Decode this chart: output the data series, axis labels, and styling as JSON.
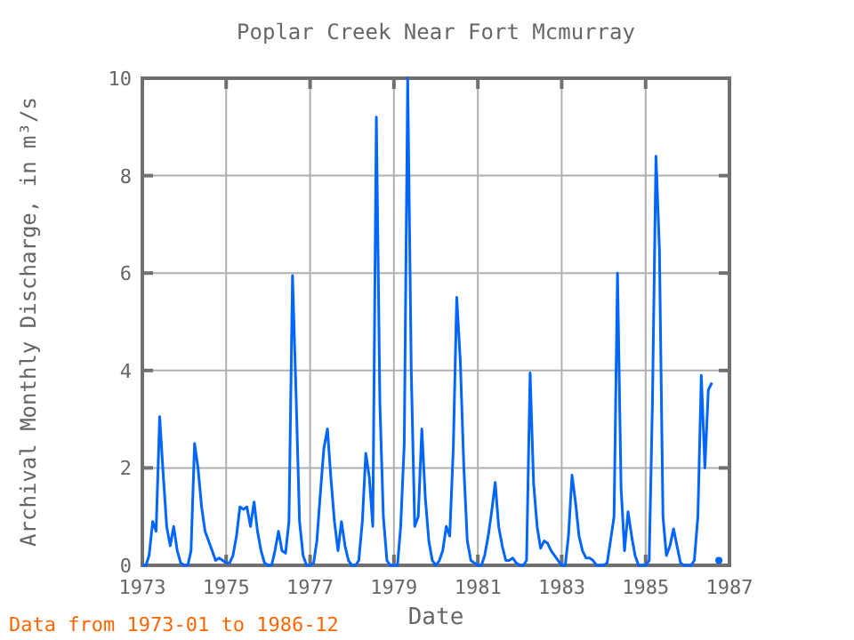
{
  "chart_data": {
    "type": "line",
    "title": "Poplar Creek Near Fort Mcmurray",
    "xlabel": "Date",
    "ylabel": "Archival Monthly Discharge, in m³/s",
    "annotations": [
      "Data from 1973-01 to 1986-12"
    ],
    "x": [
      "1973-01",
      "1973-02",
      "1973-03",
      "1973-04",
      "1973-05",
      "1973-06",
      "1973-07",
      "1973-08",
      "1973-09",
      "1973-10",
      "1973-11",
      "1973-12",
      "1974-01",
      "1974-02",
      "1974-03",
      "1974-04",
      "1974-05",
      "1974-06",
      "1974-07",
      "1974-08",
      "1974-09",
      "1974-10",
      "1974-11",
      "1974-12",
      "1975-01",
      "1975-02",
      "1975-03",
      "1975-04",
      "1975-05",
      "1975-06",
      "1975-07",
      "1975-08",
      "1975-09",
      "1975-10",
      "1975-11",
      "1975-12",
      "1976-01",
      "1976-02",
      "1976-03",
      "1976-04",
      "1976-05",
      "1976-06",
      "1976-07",
      "1976-08",
      "1976-09",
      "1976-10",
      "1976-11",
      "1976-12",
      "1977-01",
      "1977-02",
      "1977-03",
      "1977-04",
      "1977-05",
      "1977-06",
      "1977-07",
      "1977-08",
      "1977-09",
      "1977-10",
      "1977-11",
      "1977-12",
      "1978-01",
      "1978-02",
      "1978-03",
      "1978-04",
      "1978-05",
      "1978-06",
      "1978-07",
      "1978-08",
      "1978-09",
      "1978-10",
      "1978-11",
      "1978-12",
      "1979-01",
      "1979-02",
      "1979-03",
      "1979-04",
      "1979-05",
      "1979-06",
      "1979-07",
      "1979-08",
      "1979-09",
      "1979-10",
      "1979-11",
      "1979-12",
      "1980-01",
      "1980-02",
      "1980-03",
      "1980-04",
      "1980-05",
      "1980-06",
      "1980-07",
      "1980-08",
      "1980-09",
      "1980-10",
      "1980-11",
      "1980-12",
      "1981-01",
      "1981-02",
      "1981-03",
      "1981-04",
      "1981-05",
      "1981-06",
      "1981-07",
      "1981-08",
      "1981-09",
      "1981-10",
      "1981-11",
      "1981-12",
      "1982-01",
      "1982-02",
      "1982-03",
      "1982-04",
      "1982-05",
      "1982-06",
      "1982-07",
      "1982-08",
      "1982-09",
      "1982-10",
      "1982-11",
      "1982-12",
      "1983-01",
      "1983-02",
      "1983-03",
      "1983-04",
      "1983-05",
      "1983-06",
      "1983-07",
      "1983-08",
      "1983-09",
      "1983-10",
      "1983-11",
      "1983-12",
      "1984-01",
      "1984-02",
      "1984-03",
      "1984-04",
      "1984-05",
      "1984-06",
      "1984-07",
      "1984-08",
      "1984-09",
      "1984-10",
      "1984-11",
      "1984-12",
      "1985-01",
      "1985-02",
      "1985-03",
      "1985-04",
      "1985-05",
      "1985-06",
      "1985-07",
      "1985-08",
      "1985-09",
      "1985-10",
      "1985-11",
      "1985-12",
      "1986-01",
      "1986-02",
      "1986-03",
      "1986-04",
      "1986-05",
      "1986-06",
      "1986-07",
      "1986-08",
      "1986-09",
      "1986-10"
    ],
    "series": [
      {
        "color": "#0066ff",
        "values": [
          0,
          0,
          0.2,
          0.9,
          0.7,
          3.05,
          1.9,
          0.8,
          0.4,
          0.8,
          0.3,
          0.05,
          0,
          0,
          0.3,
          2.5,
          2.0,
          1.2,
          0.7,
          0.5,
          0.3,
          0.1,
          0.15,
          0.1,
          0.05,
          0.05,
          0.2,
          0.6,
          1.2,
          1.15,
          1.2,
          0.8,
          1.3,
          0.7,
          0.3,
          0.05,
          0,
          0,
          0.3,
          0.7,
          0.3,
          0.25,
          0.9,
          5.95,
          3.5,
          0.9,
          0.2,
          0,
          0,
          0.05,
          0.5,
          1.5,
          2.4,
          2.8,
          1.8,
          0.9,
          0.3,
          0.9,
          0.4,
          0.1,
          0,
          0,
          0.1,
          0.9,
          2.3,
          1.8,
          0.8,
          9.2,
          3.3,
          1.0,
          0.1,
          0,
          0,
          0,
          0.8,
          2.5,
          10,
          4.0,
          0.8,
          1.0,
          2.8,
          1.4,
          0.5,
          0.1,
          0,
          0.1,
          0.3,
          0.8,
          0.6,
          2.4,
          5.5,
          4.2,
          2.0,
          0.5,
          0.1,
          0.05,
          0,
          0,
          0.2,
          0.6,
          1.1,
          1.7,
          0.8,
          0.4,
          0.1,
          0.1,
          0.15,
          0.05,
          0,
          0,
          0.1,
          3.95,
          1.7,
          0.8,
          0.35,
          0.5,
          0.45,
          0.3,
          0.2,
          0.1,
          0,
          0,
          0.6,
          1.85,
          1.3,
          0.6,
          0.3,
          0.15,
          0.15,
          0.1,
          0,
          0,
          0,
          0.05,
          0.5,
          1.0,
          6.0,
          1.6,
          0.3,
          1.1,
          0.6,
          0.2,
          0,
          0,
          0,
          0.1,
          3.3,
          8.4,
          6.5,
          1.0,
          0.2,
          0.4,
          0.75,
          0.4,
          0.05,
          0,
          0,
          0,
          0.1,
          1.0,
          3.9,
          2.0,
          3.6,
          3.75,
          null,
          0.1
        ]
      }
    ],
    "xlim": [
      "1973",
      "1987"
    ],
    "xticks": [
      {
        "value": "1973",
        "label": "1973"
      },
      {
        "value": "1975",
        "label": "1975"
      },
      {
        "value": "1977",
        "label": "1977"
      },
      {
        "value": "1979",
        "label": "1979"
      },
      {
        "value": "1981",
        "label": "1981"
      },
      {
        "value": "1983",
        "label": "1983"
      },
      {
        "value": "1985",
        "label": "1985"
      },
      {
        "value": "1987",
        "label": "1987"
      }
    ],
    "ylim": [
      0,
      10
    ],
    "yticks": [
      0,
      2,
      4,
      6,
      8,
      10
    ],
    "grid": true
  }
}
